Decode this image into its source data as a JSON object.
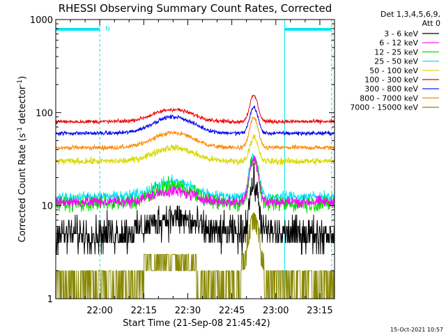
{
  "chart_data": {
    "type": "line",
    "title": "RHESSI Observing Summary Count Rates, Corrected",
    "xlabel": "Start Time (21-Sep-08 21:45:42)",
    "ylabel": "Corrected Count Rate (s",
    "ylabel_sup1": "-1",
    "ylabel_mid": " detector",
    "ylabel_sup2": "-1",
    "ylabel_end": ")",
    "yscale": "log",
    "ylim": [
      1,
      1000
    ],
    "y_ticks": [
      "1",
      "10",
      "100",
      "1000"
    ],
    "x_ticks": [
      "22:00",
      "22:15",
      "22:30",
      "22:45",
      "23:00",
      "23:15"
    ],
    "xlim_min": [
      -15,
      80
    ],
    "legend_header": [
      "Det 1,3,4,5,6,9,",
      "Att 0"
    ],
    "legend_position": "right",
    "night_marker_label": "N",
    "timestamp": "15-Oct-2021 10:57",
    "vertical_lines_min": [
      -15,
      0,
      63,
      79
    ],
    "night_bars_min": [
      [
        -15,
        0
      ],
      [
        63,
        79
      ]
    ],
    "series": [
      {
        "name": "3 - 6 keV",
        "color": "#000000",
        "base": 5.0,
        "bump": 1.5,
        "flare": 3.5,
        "noise": 0.3
      },
      {
        "name": "6 - 12 keV",
        "color": "#ff00ff",
        "base": 11.0,
        "bump": 1.3,
        "flare": 3.0,
        "noise": 0.1
      },
      {
        "name": "12 - 25 keV",
        "color": "#00e000",
        "base": 10.5,
        "bump": 1.55,
        "flare": 3.2,
        "noise": 0.14
      },
      {
        "name": "25 - 50 keV",
        "color": "#00e5ee",
        "base": 12.5,
        "bump": 1.45,
        "flare": 2.8,
        "noise": 0.09
      },
      {
        "name": "50 - 100 keV",
        "color": "#d8d800",
        "base": 30.0,
        "bump": 1.4,
        "flare": 1.8,
        "noise": 0.06
      },
      {
        "name": "100 - 300 keV",
        "color": "#ee0000",
        "base": 80.0,
        "bump": 1.35,
        "flare": 1.9,
        "noise": 0.035
      },
      {
        "name": "300 - 800 keV",
        "color": "#0000ee",
        "base": 60.0,
        "bump": 1.5,
        "flare": 1.9,
        "noise": 0.035
      },
      {
        "name": "800 - 7000 keV",
        "color": "#ff8800",
        "base": 42.0,
        "bump": 1.45,
        "flare": 2.1,
        "noise": 0.04
      },
      {
        "name": "7000 - 15000 keV",
        "color": "#888800",
        "base": 1.5,
        "bump": 1.0,
        "flare": 2.0,
        "noise": 0.3
      }
    ],
    "events": {
      "bump_center_min": 25,
      "bump_width_min": 9,
      "flare_peak_min": 52.5,
      "flare_width_min": 1.8
    }
  }
}
